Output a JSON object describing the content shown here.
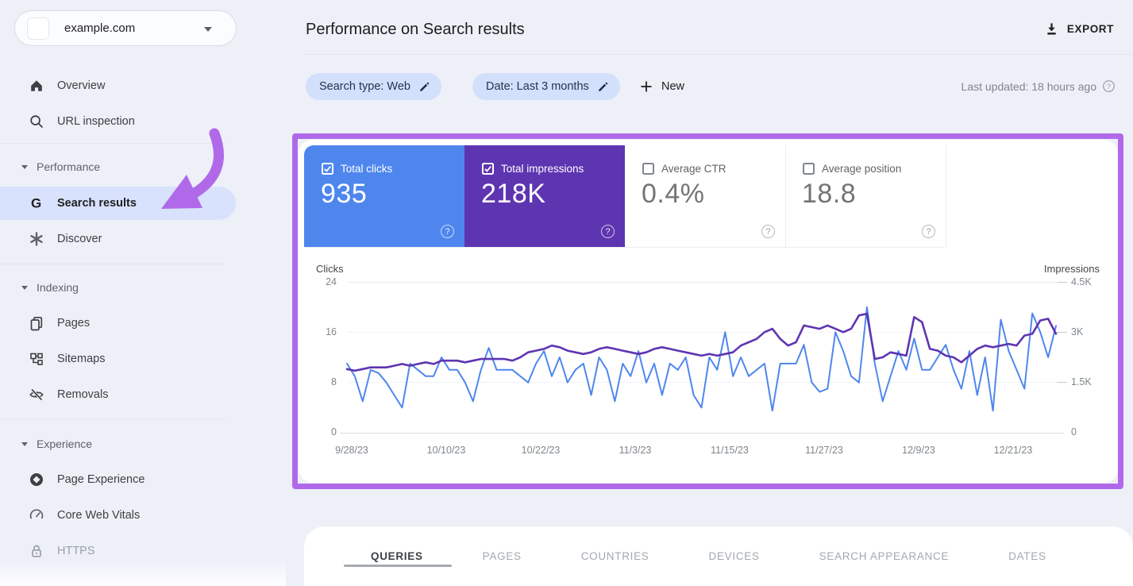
{
  "sidebar": {
    "property": {
      "label": "example.com"
    },
    "items": [
      {
        "label": "Overview"
      },
      {
        "label": "URL inspection"
      }
    ],
    "sections": [
      {
        "label": "Performance",
        "items": [
          {
            "label": "Search results",
            "active": true
          },
          {
            "label": "Discover"
          }
        ]
      },
      {
        "label": "Indexing",
        "items": [
          {
            "label": "Pages"
          },
          {
            "label": "Sitemaps"
          },
          {
            "label": "Removals"
          }
        ]
      },
      {
        "label": "Experience",
        "items": [
          {
            "label": "Page Experience"
          },
          {
            "label": "Core Web Vitals"
          },
          {
            "label": "HTTPS"
          }
        ]
      }
    ]
  },
  "header": {
    "title": "Performance on Search results",
    "export_label": "EXPORT"
  },
  "filters": {
    "search_type_chip": "Search type: Web",
    "date_chip": "Date: Last 3 months",
    "new_button": "New",
    "last_updated": "Last updated: 18 hours ago"
  },
  "metrics": {
    "cards": [
      {
        "label": "Total clicks",
        "value": "935",
        "checked": true,
        "bg": "#4e86ee"
      },
      {
        "label": "Total impressions",
        "value": "218K",
        "checked": true,
        "bg": "#5e35b1"
      },
      {
        "label": "Average CTR",
        "value": "0.4%",
        "checked": false,
        "bg": "#ffffff"
      },
      {
        "label": "Average position",
        "value": "18.8",
        "checked": false,
        "bg": "#ffffff"
      }
    ]
  },
  "chart_data": {
    "type": "line",
    "title": "",
    "xlabel": "",
    "x_tick_labels": [
      "9/28/23",
      "10/10/23",
      "10/22/23",
      "11/3/23",
      "11/15/23",
      "11/27/23",
      "12/9/23",
      "12/21/23"
    ],
    "left_axis": {
      "label": "Clicks",
      "ticks": [
        "24",
        "16",
        "8",
        "0"
      ],
      "min": 0,
      "max": 24
    },
    "right_axis": {
      "label": "Impressions",
      "ticks": [
        "4.5K",
        "3K",
        "1.5K",
        "0"
      ],
      "min": 0,
      "max": 4500
    },
    "grid": "horizontal-subtle",
    "legend_position": "none",
    "series": [
      {
        "name": "Total clicks",
        "axis": "left",
        "color": "#4f87ee",
        "values": [
          11,
          9,
          5,
          10,
          9.5,
          8,
          6,
          4,
          11,
          10,
          9,
          9,
          12,
          10,
          10,
          8,
          5,
          10,
          13.5,
          10,
          10,
          10,
          9,
          8,
          11,
          13,
          9,
          12,
          8,
          10,
          11,
          6,
          12,
          10,
          5,
          11,
          9,
          13,
          8,
          11,
          6,
          11,
          10,
          12,
          6,
          4,
          12,
          10,
          16,
          9,
          12,
          9,
          10,
          11,
          3.5,
          11,
          11,
          11,
          14,
          8,
          6.5,
          7,
          16,
          13,
          9,
          8,
          20,
          11,
          5,
          9,
          13,
          10,
          15,
          10,
          10,
          12,
          14,
          10,
          7,
          13,
          6,
          12,
          3.5,
          18,
          13,
          10,
          7,
          19,
          16,
          12,
          17
        ]
      },
      {
        "name": "Total impressions",
        "axis": "right",
        "color": "#5e35b1",
        "values": [
          1900,
          1850,
          1900,
          1950,
          1950,
          1950,
          2000,
          2050,
          2000,
          2050,
          2100,
          2050,
          2150,
          2150,
          2150,
          2100,
          2150,
          2200,
          2200,
          2200,
          2200,
          2150,
          2250,
          2400,
          2450,
          2500,
          2600,
          2550,
          2450,
          2400,
          2350,
          2400,
          2500,
          2550,
          2500,
          2450,
          2400,
          2350,
          2400,
          2500,
          2550,
          2500,
          2450,
          2400,
          2350,
          2300,
          2350,
          2300,
          2350,
          2400,
          2600,
          2700,
          2800,
          3000,
          3100,
          2800,
          2600,
          2700,
          3200,
          3150,
          3100,
          3200,
          3100,
          3000,
          3100,
          3500,
          3550,
          2200,
          2250,
          2400,
          2350,
          2300,
          3450,
          3300,
          2500,
          2450,
          2300,
          2250,
          2100,
          2300,
          2500,
          2600,
          2550,
          2600,
          2650,
          2600,
          2900,
          2950,
          3350,
          3400,
          2950
        ]
      }
    ]
  },
  "tabs": {
    "items": [
      {
        "label": "QUERIES",
        "active": true
      },
      {
        "label": "PAGES"
      },
      {
        "label": "COUNTRIES"
      },
      {
        "label": "DEVICES"
      },
      {
        "label": "SEARCH APPEARANCE"
      },
      {
        "label": "DATES"
      }
    ]
  },
  "annotation": {
    "highlight_color": "#b06ae9"
  }
}
